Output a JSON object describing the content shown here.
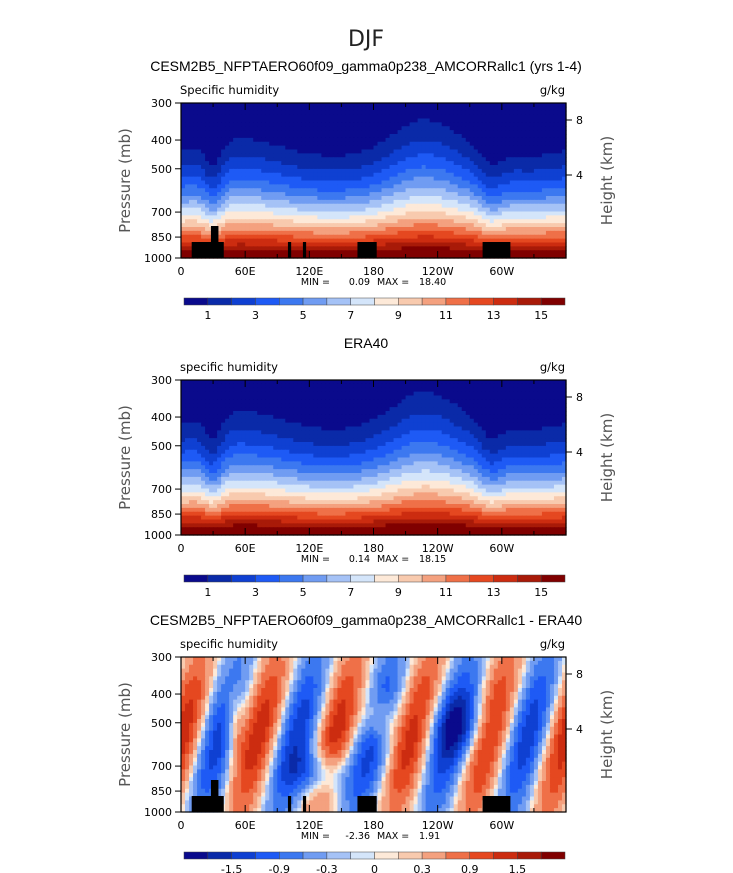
{
  "page_title": "DJF",
  "colors_humidity": [
    "#0a0a8c",
    "#0a2aa8",
    "#0f40d2",
    "#1e5af5",
    "#3c78f0",
    "#709cf2",
    "#a5c2f6",
    "#d4e5fa",
    "#fde9d8",
    "#f8caae",
    "#f4a17f",
    "#ef7048",
    "#e54820",
    "#cc2c10",
    "#a81a08",
    "#800000"
  ],
  "colors_diff": [
    "#0a0a8c",
    "#0a2aa8",
    "#0f40d2",
    "#1e5af5",
    "#3c78f0",
    "#709cf2",
    "#a5c2f6",
    "#d4e5fa",
    "#fde9d8",
    "#f8caae",
    "#f4a17f",
    "#ef7048",
    "#e54820",
    "#cc2c10",
    "#a81a08",
    "#800000"
  ],
  "chart_data": [
    {
      "type": "heatmap",
      "title": "CESM2B5_NFPTAERO60f09_gamma0p238_AMCORRallc1 (yrs 1-4)",
      "left_label": "Specific humidity",
      "units": "g/kg",
      "ylabel": "Pressure (mb)",
      "ylabel_right": "Height (km)",
      "x_ticks": [
        "0",
        "60E",
        "120E",
        "180",
        "120W",
        "60W"
      ],
      "y_ticks": [
        "300",
        "400",
        "500",
        "700",
        "850",
        "1000"
      ],
      "y_ticks_right": [
        "8",
        "4"
      ],
      "ylim": [
        1000,
        300
      ],
      "xlim": [
        0,
        360
      ],
      "min_label": "MIN =",
      "min": "0.09",
      "max_label": "MAX =",
      "max": "18.40",
      "colorbar_labels": [
        "1",
        "3",
        "5",
        "7",
        "9",
        "11",
        "13",
        "15"
      ],
      "field": "humidity"
    },
    {
      "type": "heatmap",
      "title": "ERA40",
      "left_label": "specific humidity",
      "units": "g/kg",
      "ylabel": "Pressure (mb)",
      "ylabel_right": "Height (km)",
      "x_ticks": [
        "0",
        "60E",
        "120E",
        "180",
        "120W",
        "60W"
      ],
      "y_ticks": [
        "300",
        "400",
        "500",
        "700",
        "850",
        "1000"
      ],
      "y_ticks_right": [
        "8",
        "4"
      ],
      "ylim": [
        1000,
        300
      ],
      "xlim": [
        0,
        360
      ],
      "min_label": "MIN =",
      "min": "0.14",
      "max_label": "MAX =",
      "max": "18.15",
      "colorbar_labels": [
        "1",
        "3",
        "5",
        "7",
        "9",
        "11",
        "13",
        "15"
      ],
      "field": "era"
    },
    {
      "type": "heatmap",
      "title": "CESM2B5_NFPTAERO60f09_gamma0p238_AMCORRallc1 - ERA40",
      "left_label": "specific humidity",
      "units": "g/kg",
      "ylabel": "Pressure (mb)",
      "ylabel_right": "Height (km)",
      "x_ticks": [
        "0",
        "60E",
        "120E",
        "180",
        "120W",
        "60W"
      ],
      "y_ticks": [
        "300",
        "400",
        "500",
        "700",
        "850",
        "1000"
      ],
      "y_ticks_right": [
        "8",
        "4"
      ],
      "ylim": [
        1000,
        300
      ],
      "xlim": [
        0,
        360
      ],
      "min_label": "MIN =",
      "min": "-2.36",
      "max_label": "MAX =",
      "max": "1.91",
      "colorbar_labels": [
        "-1.5",
        "-0.9",
        "-0.3",
        "0",
        "0.3",
        "0.9",
        "1.5"
      ],
      "field": "diff"
    }
  ]
}
